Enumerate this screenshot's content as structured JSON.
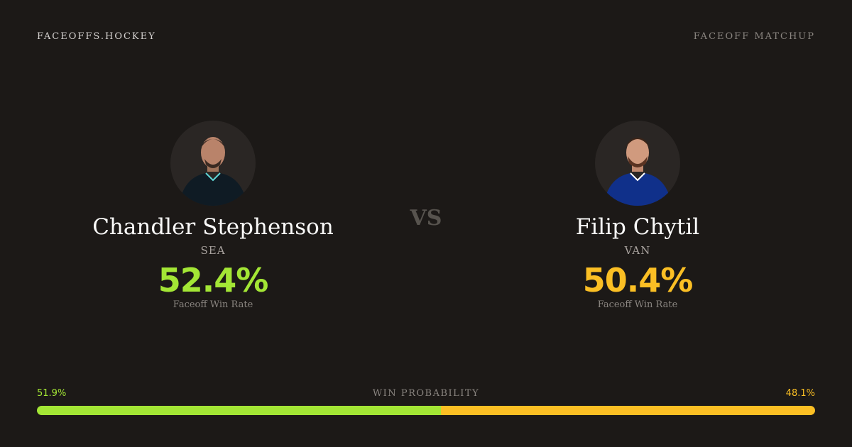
{
  "header": {
    "site": "FACEOFFS.HOCKEY",
    "label": "FACEOFF MATCHUP"
  },
  "vs": "VS",
  "players": [
    {
      "name": "Chandler Stephenson",
      "team": "SEA",
      "rate": "52.4%",
      "rate_label": "Faceoff Win Rate",
      "color": "#a3e635"
    },
    {
      "name": "Filip Chytil",
      "team": "VAN",
      "rate": "50.4%",
      "rate_label": "Faceoff Win Rate",
      "color": "#fbbf24"
    }
  ],
  "win_probability": {
    "label": "WIN PROBABILITY",
    "values": [
      51.9,
      48.1
    ],
    "value_labels": [
      "51.9%",
      "48.1%"
    ],
    "colors": [
      "#a3e635",
      "#fbbf24"
    ]
  }
}
